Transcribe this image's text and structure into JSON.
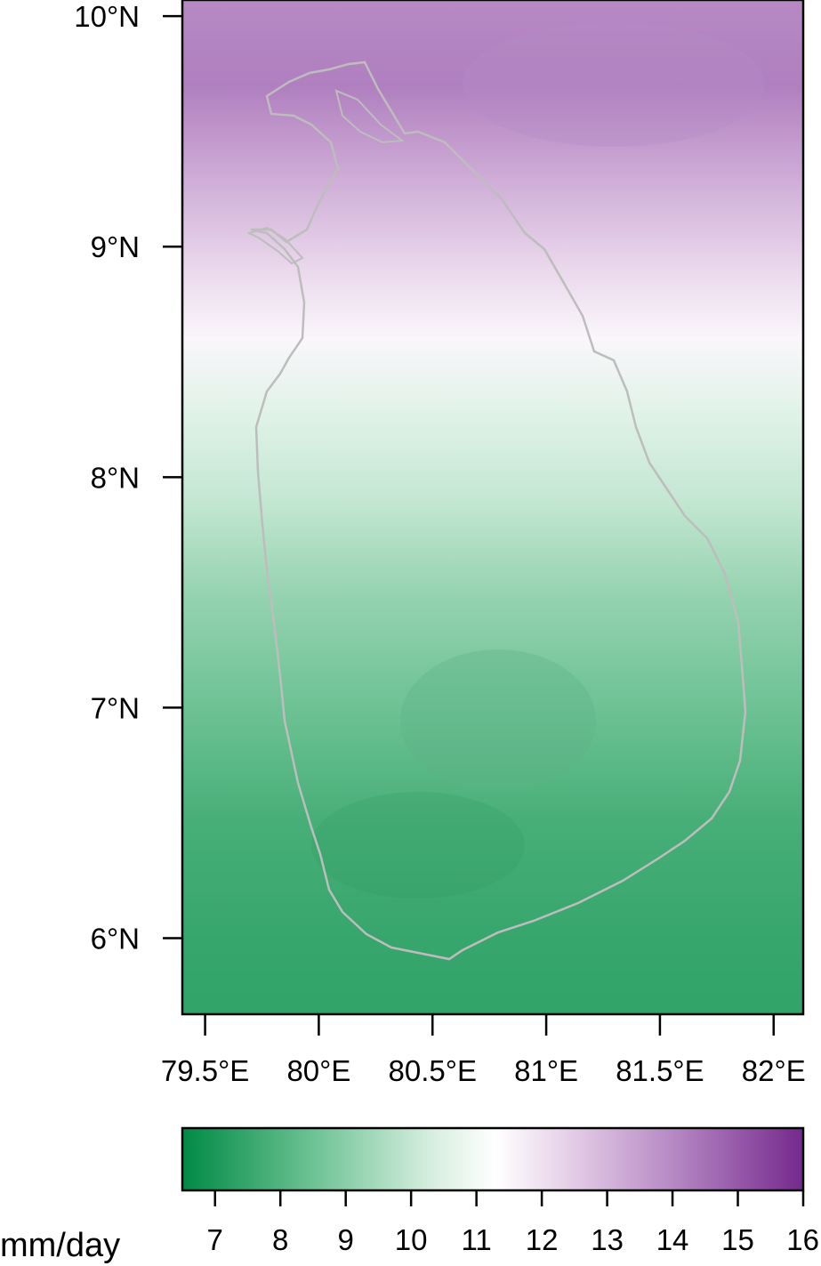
{
  "map": {
    "type": "heatmap",
    "region": "Sri Lanka",
    "lon_range": [
      79.4,
      82.13
    ],
    "lat_range": [
      5.67,
      10.07
    ],
    "lat_ticks": [
      {
        "value": 10,
        "label": "10°N"
      },
      {
        "value": 9,
        "label": "9°N"
      },
      {
        "value": 8,
        "label": "8°N"
      },
      {
        "value": 7,
        "label": "7°N"
      },
      {
        "value": 6,
        "label": "6°N"
      }
    ],
    "lon_ticks": [
      {
        "value": 79.5,
        "label": "79.5°E"
      },
      {
        "value": 80.0,
        "label": "80°E"
      },
      {
        "value": 80.5,
        "label": "80.5°E"
      },
      {
        "value": 81.0,
        "label": "81°E"
      },
      {
        "value": 81.5,
        "label": "81.5°E"
      },
      {
        "value": 82.0,
        "label": "82°E"
      }
    ],
    "coastline_color": "#bdbdbd",
    "field_gradient": [
      {
        "lat": 10.07,
        "value": 14.0
      },
      {
        "lat": 9.7,
        "value": 14.2
      },
      {
        "lat": 9.3,
        "value": 13.2
      },
      {
        "lat": 8.9,
        "value": 12.2
      },
      {
        "lat": 8.6,
        "value": 11.5
      },
      {
        "lat": 8.3,
        "value": 10.6
      },
      {
        "lat": 7.9,
        "value": 10.0
      },
      {
        "lat": 7.5,
        "value": 9.2
      },
      {
        "lat": 7.0,
        "value": 8.5
      },
      {
        "lat": 6.5,
        "value": 7.8
      },
      {
        "lat": 6.0,
        "value": 7.5
      },
      {
        "lat": 5.67,
        "value": 7.4
      }
    ]
  },
  "colorbar": {
    "unit_label": "mm/day",
    "min": 6.5,
    "max": 16,
    "ticks": [
      7,
      8,
      9,
      10,
      11,
      12,
      13,
      14,
      15,
      16
    ],
    "colors": [
      {
        "value": 6.5,
        "color": "#008a45"
      },
      {
        "value": 8.5,
        "color": "#6dc294"
      },
      {
        "value": 10.3,
        "color": "#d6eedf"
      },
      {
        "value": 11.3,
        "color": "#ffffff"
      },
      {
        "value": 12.5,
        "color": "#e3cbe6"
      },
      {
        "value": 14.0,
        "color": "#b689c4"
      },
      {
        "value": 16.0,
        "color": "#75298e"
      }
    ]
  }
}
